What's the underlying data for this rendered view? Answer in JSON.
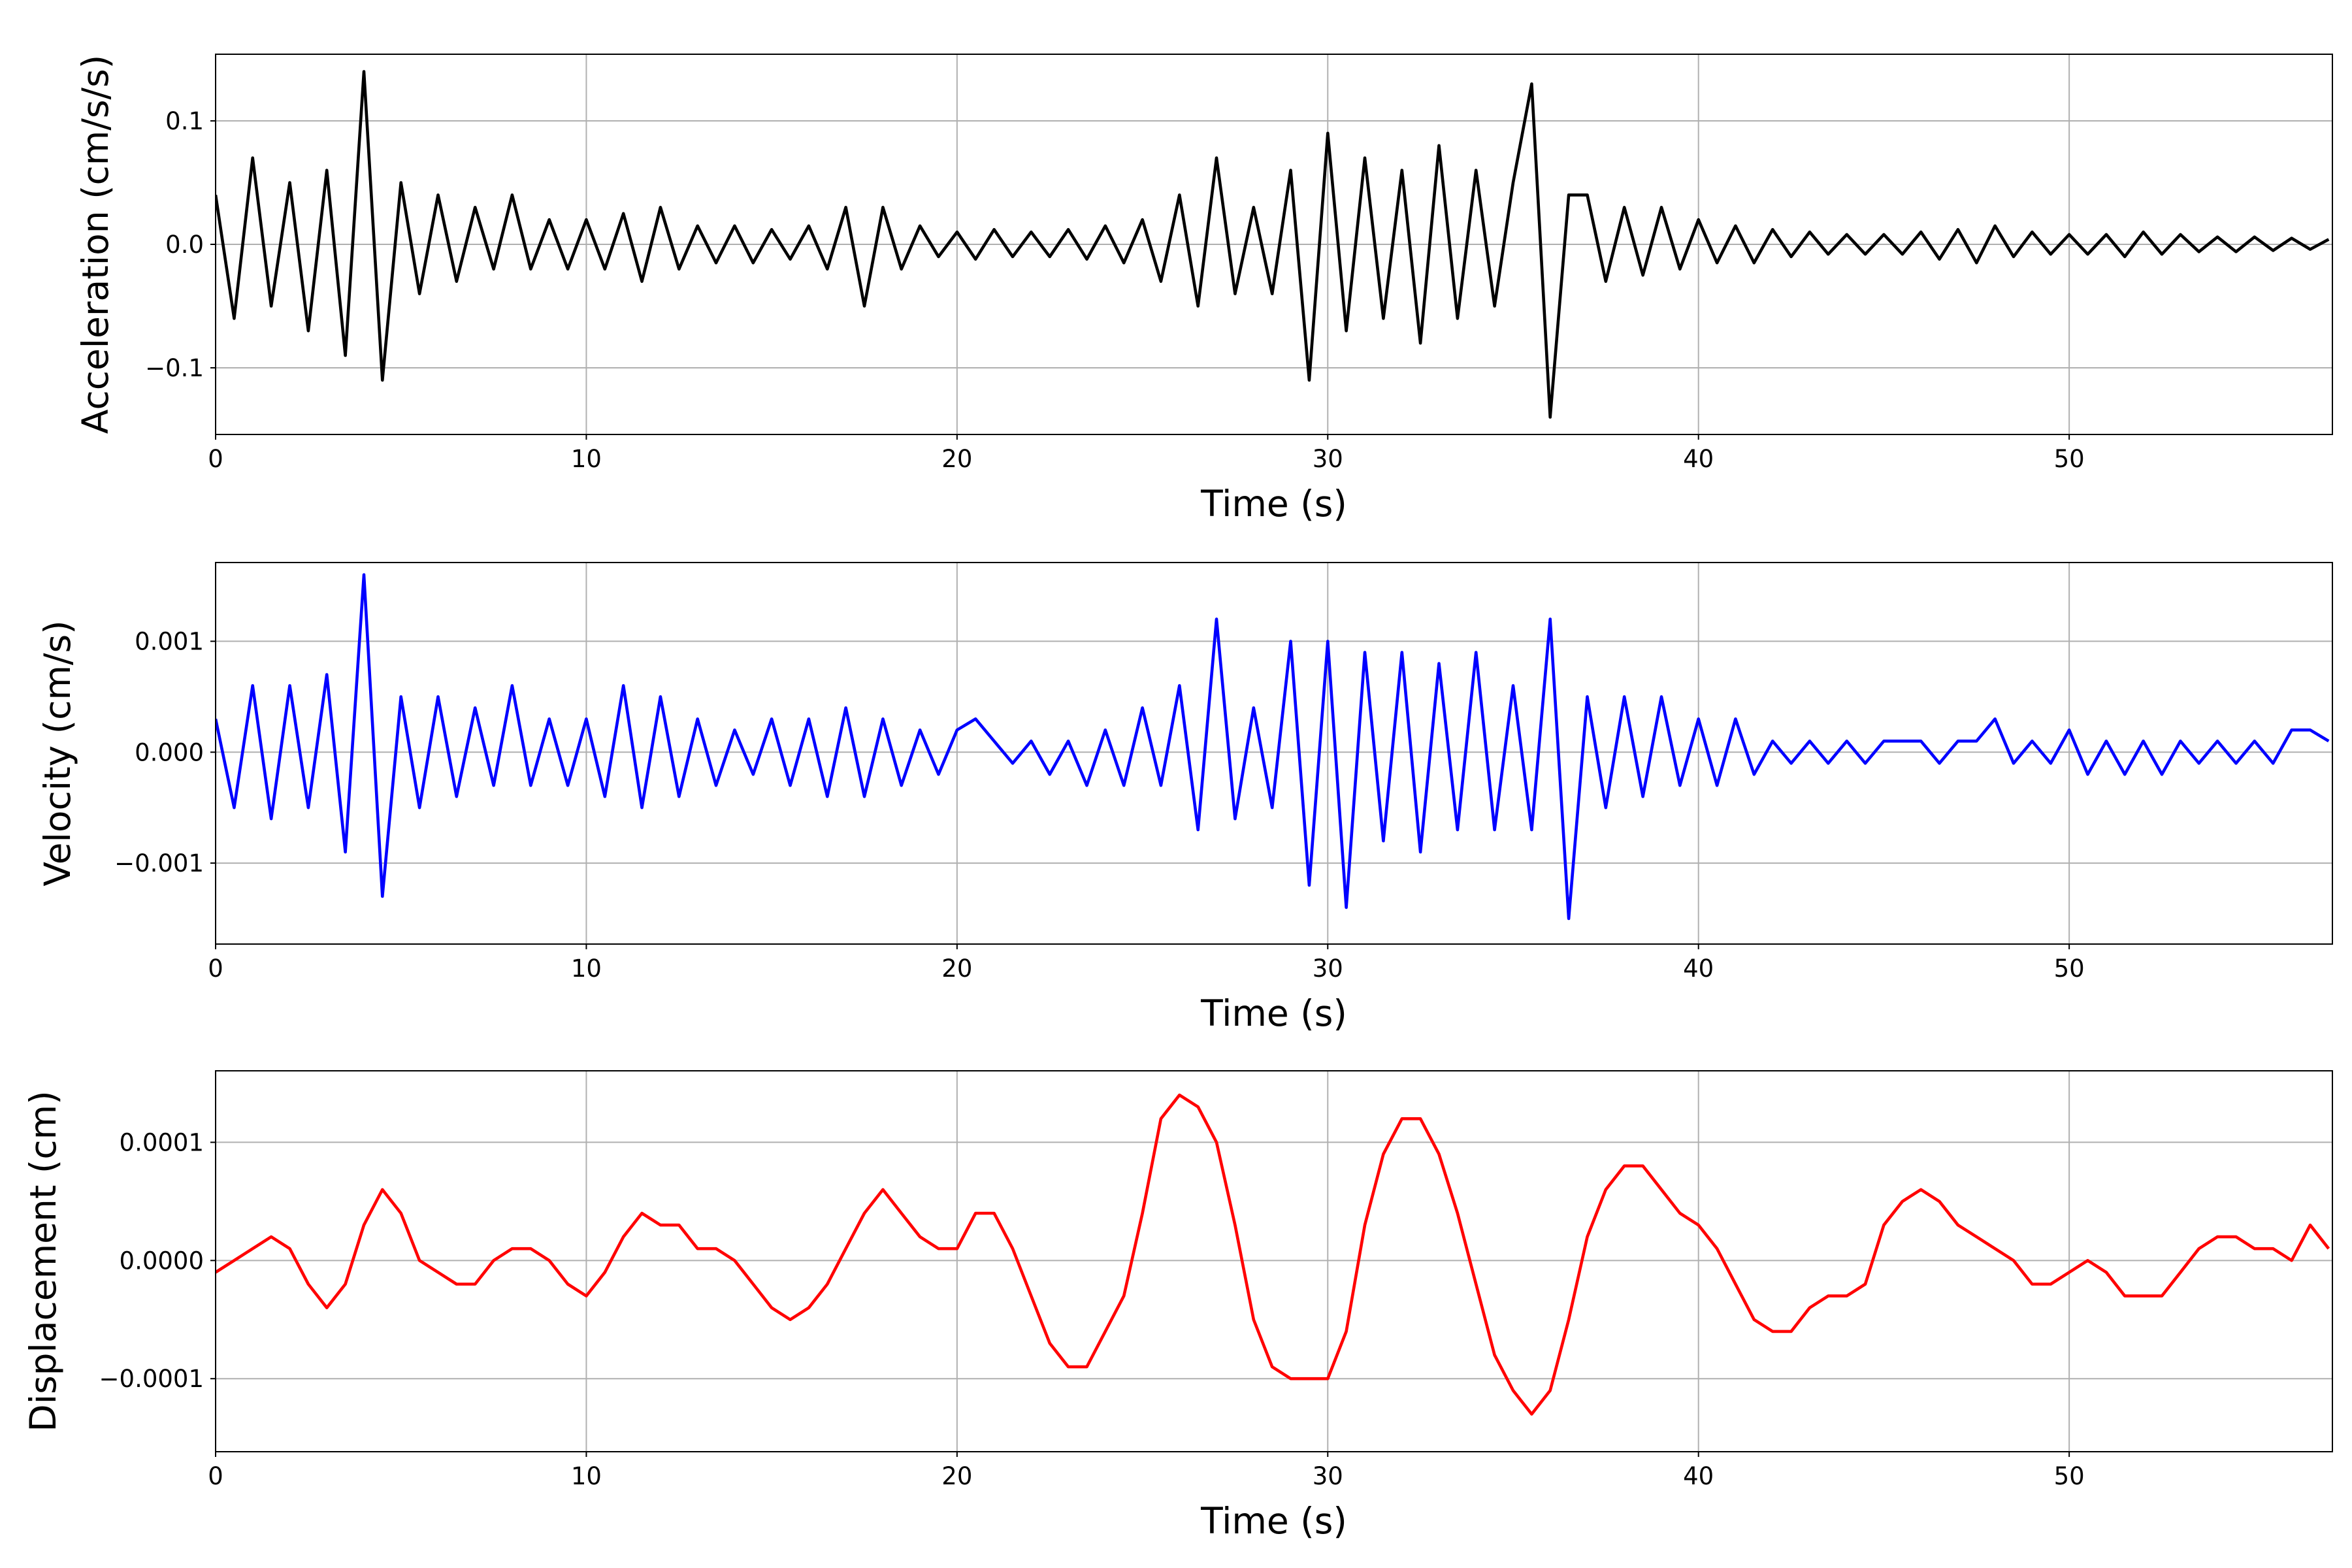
{
  "chart_data": [
    {
      "type": "line",
      "ylabel": "Acceleration (cm/s/s)",
      "xlabel": "Time (s)",
      "color": "#000000",
      "grid": true,
      "xlim": [
        0,
        57.1
      ],
      "ylim": [
        -0.154,
        0.154
      ],
      "xticks": [
        0,
        10,
        20,
        30,
        40,
        50
      ],
      "yticks": [
        {
          "value": -0.1,
          "label": "−0.1"
        },
        {
          "value": 0,
          "label": "0.0"
        },
        0.1
      ],
      "x": [
        0,
        0.5,
        1,
        1.5,
        2,
        2.5,
        3,
        3.5,
        4,
        4.5,
        5,
        5.5,
        6,
        6.5,
        7,
        7.5,
        8,
        8.5,
        9,
        9.5,
        10,
        10.5,
        11,
        11.5,
        12,
        12.5,
        13,
        13.5,
        14,
        14.5,
        15,
        15.5,
        16,
        16.5,
        17,
        17.5,
        18,
        18.5,
        19,
        19.5,
        20,
        20.5,
        21,
        21.5,
        22,
        22.5,
        23,
        23.5,
        24,
        24.5,
        25,
        25.5,
        26,
        26.5,
        27,
        27.5,
        28,
        28.5,
        29,
        29.5,
        30,
        30.5,
        31,
        31.5,
        32,
        32.5,
        33,
        33.5,
        34,
        34.5,
        35,
        35.5,
        36,
        36.5,
        37,
        37.5,
        38,
        38.5,
        39,
        39.5,
        40,
        40.5,
        41,
        41.5,
        42,
        42.5,
        43,
        43.5,
        44,
        44.5,
        45,
        45.5,
        46,
        46.5,
        47,
        47.5,
        48,
        48.5,
        49,
        49.5,
        50,
        50.5,
        51,
        51.5,
        52,
        52.5,
        53,
        53.5,
        54,
        54.5,
        55,
        55.5,
        56,
        56.5,
        57
      ],
      "values": [
        0.04,
        -0.06,
        0.07,
        -0.05,
        0.05,
        -0.07,
        0.06,
        -0.09,
        0.14,
        -0.11,
        0.05,
        -0.04,
        0.04,
        -0.03,
        0.03,
        -0.02,
        0.04,
        -0.02,
        0.02,
        -0.02,
        0.02,
        -0.02,
        0.025,
        -0.03,
        0.03,
        -0.02,
        0.015,
        -0.015,
        0.015,
        -0.015,
        0.012,
        -0.012,
        0.015,
        -0.02,
        0.03,
        -0.05,
        0.03,
        -0.02,
        0.015,
        -0.01,
        0.01,
        -0.012,
        0.012,
        -0.01,
        0.01,
        -0.01,
        0.012,
        -0.012,
        0.015,
        -0.015,
        0.02,
        -0.03,
        0.04,
        -0.05,
        0.07,
        -0.04,
        0.03,
        -0.04,
        0.06,
        -0.11,
        0.09,
        -0.07,
        0.07,
        -0.06,
        0.06,
        -0.08,
        0.08,
        -0.06,
        0.06,
        -0.05,
        0.05,
        0.13,
        -0.14,
        0.04,
        0.04,
        -0.03,
        0.03,
        -0.025,
        0.03,
        -0.02,
        0.02,
        -0.015,
        0.015,
        -0.015,
        0.012,
        -0.01,
        0.01,
        -0.008,
        0.008,
        -0.008,
        0.008,
        -0.008,
        0.01,
        -0.012,
        0.012,
        -0.015,
        0.015,
        -0.01,
        0.01,
        -0.008,
        0.008,
        -0.008,
        0.008,
        -0.01,
        0.01,
        -0.008,
        0.008,
        -0.006,
        0.006,
        -0.006,
        0.006,
        -0.005,
        0.005,
        -0.004,
        0.004
      ]
    },
    {
      "type": "line",
      "ylabel": "Velocity (cm/s)",
      "xlabel": "Time (s)",
      "color": "#0000ff",
      "grid": true,
      "xlim": [
        0,
        57.1
      ],
      "ylim": [
        -0.00173,
        0.00171
      ],
      "xticks": [
        0,
        10,
        20,
        30,
        40,
        50
      ],
      "yticks": [
        {
          "value": -0.001,
          "label": "−0.001"
        },
        {
          "value": 0,
          "label": "0.000"
        },
        0.001
      ],
      "x": [
        0,
        0.5,
        1,
        1.5,
        2,
        2.5,
        3,
        3.5,
        4,
        4.5,
        5,
        5.5,
        6,
        6.5,
        7,
        7.5,
        8,
        8.5,
        9,
        9.5,
        10,
        10.5,
        11,
        11.5,
        12,
        12.5,
        13,
        13.5,
        14,
        14.5,
        15,
        15.5,
        16,
        16.5,
        17,
        17.5,
        18,
        18.5,
        19,
        19.5,
        20,
        20.5,
        21,
        21.5,
        22,
        22.5,
        23,
        23.5,
        24,
        24.5,
        25,
        25.5,
        26,
        26.5,
        27,
        27.5,
        28,
        28.5,
        29,
        29.5,
        30,
        30.5,
        31,
        31.5,
        32,
        32.5,
        33,
        33.5,
        34,
        34.5,
        35,
        35.5,
        36,
        36.5,
        37,
        37.5,
        38,
        38.5,
        39,
        39.5,
        40,
        40.5,
        41,
        41.5,
        42,
        42.5,
        43,
        43.5,
        44,
        44.5,
        45,
        45.5,
        46,
        46.5,
        47,
        47.5,
        48,
        48.5,
        49,
        49.5,
        50,
        50.5,
        51,
        51.5,
        52,
        52.5,
        53,
        53.5,
        54,
        54.5,
        55,
        55.5,
        56,
        56.5,
        57
      ],
      "values": [
        0.0003,
        -0.0005,
        0.0006,
        -0.0006,
        0.0006,
        -0.0005,
        0.0007,
        -0.0009,
        0.0016,
        -0.0013,
        0.0005,
        -0.0005,
        0.0005,
        -0.0004,
        0.0004,
        -0.0003,
        0.0006,
        -0.0003,
        0.0003,
        -0.0003,
        0.0003,
        -0.0004,
        0.0006,
        -0.0005,
        0.0005,
        -0.0004,
        0.0003,
        -0.0003,
        0.0002,
        -0.0002,
        0.0003,
        -0.0003,
        0.0003,
        -0.0004,
        0.0004,
        -0.0004,
        0.0003,
        -0.0003,
        0.0002,
        -0.0002,
        0.0002,
        0.0003,
        0.0001,
        -0.0001,
        0.0001,
        -0.0002,
        0.0001,
        -0.0003,
        0.0002,
        -0.0003,
        0.0004,
        -0.0003,
        0.0006,
        -0.0007,
        0.0012,
        -0.0006,
        0.0004,
        -0.0005,
        0.001,
        -0.0012,
        0.001,
        -0.0014,
        0.0009,
        -0.0008,
        0.0009,
        -0.0009,
        0.0008,
        -0.0007,
        0.0009,
        -0.0007,
        0.0006,
        -0.0007,
        0.0012,
        -0.0015,
        0.0005,
        -0.0005,
        0.0005,
        -0.0004,
        0.0005,
        -0.0003,
        0.0003,
        -0.0003,
        0.0003,
        -0.0002,
        0.0001,
        -0.0001,
        0.0001,
        -0.0001,
        0.0001,
        -0.0001,
        0.0001,
        0.0001,
        0.0001,
        -0.0001,
        0.0001,
        0.0001,
        0.0003,
        -0.0001,
        0.0001,
        -0.0001,
        0.0002,
        -0.0002,
        0.0001,
        -0.0002,
        0.0001,
        -0.0002,
        0.0001,
        -0.0001,
        0.0001,
        -0.0001,
        0.0001,
        -0.0001,
        0.0002,
        0.0002,
        0.0001
      ]
    },
    {
      "type": "line",
      "ylabel": "Displacement (cm)",
      "xlabel": "Time (s)",
      "color": "#ff0000",
      "grid": true,
      "xlim": [
        0,
        57.1
      ],
      "ylim": [
        -0.0001618,
        0.0001605
      ],
      "xticks": [
        0,
        10,
        20,
        30,
        40,
        50
      ],
      "yticks": [
        {
          "value": -0.0001,
          "label": "−0.0001"
        },
        {
          "value": 0,
          "label": "0.0000"
        },
        0.0001
      ],
      "x": [
        0,
        0.5,
        1,
        1.5,
        2,
        2.5,
        3,
        3.5,
        4,
        4.5,
        5,
        5.5,
        6,
        6.5,
        7,
        7.5,
        8,
        8.5,
        9,
        9.5,
        10,
        10.5,
        11,
        11.5,
        12,
        12.5,
        13,
        13.5,
        14,
        14.5,
        15,
        15.5,
        16,
        16.5,
        17,
        17.5,
        18,
        18.5,
        19,
        19.5,
        20,
        20.5,
        21,
        21.5,
        22,
        22.5,
        23,
        23.5,
        24,
        24.5,
        25,
        25.5,
        26,
        26.5,
        27,
        27.5,
        28,
        28.5,
        29,
        29.5,
        30,
        30.5,
        31,
        31.5,
        32,
        32.5,
        33,
        33.5,
        34,
        34.5,
        35,
        35.5,
        36,
        36.5,
        37,
        37.5,
        38,
        38.5,
        39,
        39.5,
        40,
        40.5,
        41,
        41.5,
        42,
        42.5,
        43,
        43.5,
        44,
        44.5,
        45,
        45.5,
        46,
        46.5,
        47,
        47.5,
        48,
        48.5,
        49,
        49.5,
        50,
        50.5,
        51,
        51.5,
        52,
        52.5,
        53,
        53.5,
        54,
        54.5,
        55,
        55.5,
        56,
        56.5,
        57
      ],
      "values": [
        -1e-05,
        0,
        1e-05,
        2e-05,
        1e-05,
        -2e-05,
        -4e-05,
        -2e-05,
        3e-05,
        6e-05,
        4e-05,
        0,
        -1e-05,
        -2e-05,
        -2e-05,
        0,
        1e-05,
        1e-05,
        0,
        -2e-05,
        -3e-05,
        -1e-05,
        2e-05,
        4e-05,
        3e-05,
        3e-05,
        1e-05,
        1e-05,
        0,
        -2e-05,
        -4e-05,
        -5e-05,
        -4e-05,
        -2e-05,
        1e-05,
        4e-05,
        6e-05,
        4e-05,
        2e-05,
        1e-05,
        1e-05,
        4e-05,
        4e-05,
        1e-05,
        -3e-05,
        -7e-05,
        -9e-05,
        -9e-05,
        -6e-05,
        -3e-05,
        4e-05,
        0.00012,
        0.00014,
        0.00013,
        0.0001,
        3e-05,
        -5e-05,
        -9e-05,
        -0.0001,
        -0.0001,
        -0.0001,
        -6e-05,
        3e-05,
        9e-05,
        0.00012,
        0.00012,
        9e-05,
        4e-05,
        -2e-05,
        -8e-05,
        -0.00011,
        -0.00013,
        -0.00011,
        -5e-05,
        2e-05,
        6e-05,
        8e-05,
        8e-05,
        6e-05,
        4e-05,
        3e-05,
        1e-05,
        -2e-05,
        -5e-05,
        -6e-05,
        -6e-05,
        -4e-05,
        -3e-05,
        -3e-05,
        -2e-05,
        3e-05,
        5e-05,
        6e-05,
        5e-05,
        3e-05,
        2e-05,
        1e-05,
        0,
        -2e-05,
        -2e-05,
        -1e-05,
        0,
        -1e-05,
        -3e-05,
        -3e-05,
        -3e-05,
        -1e-05,
        1e-05,
        2e-05,
        2e-05,
        1e-05,
        1e-05,
        0,
        3e-05,
        1e-05
      ]
    }
  ]
}
